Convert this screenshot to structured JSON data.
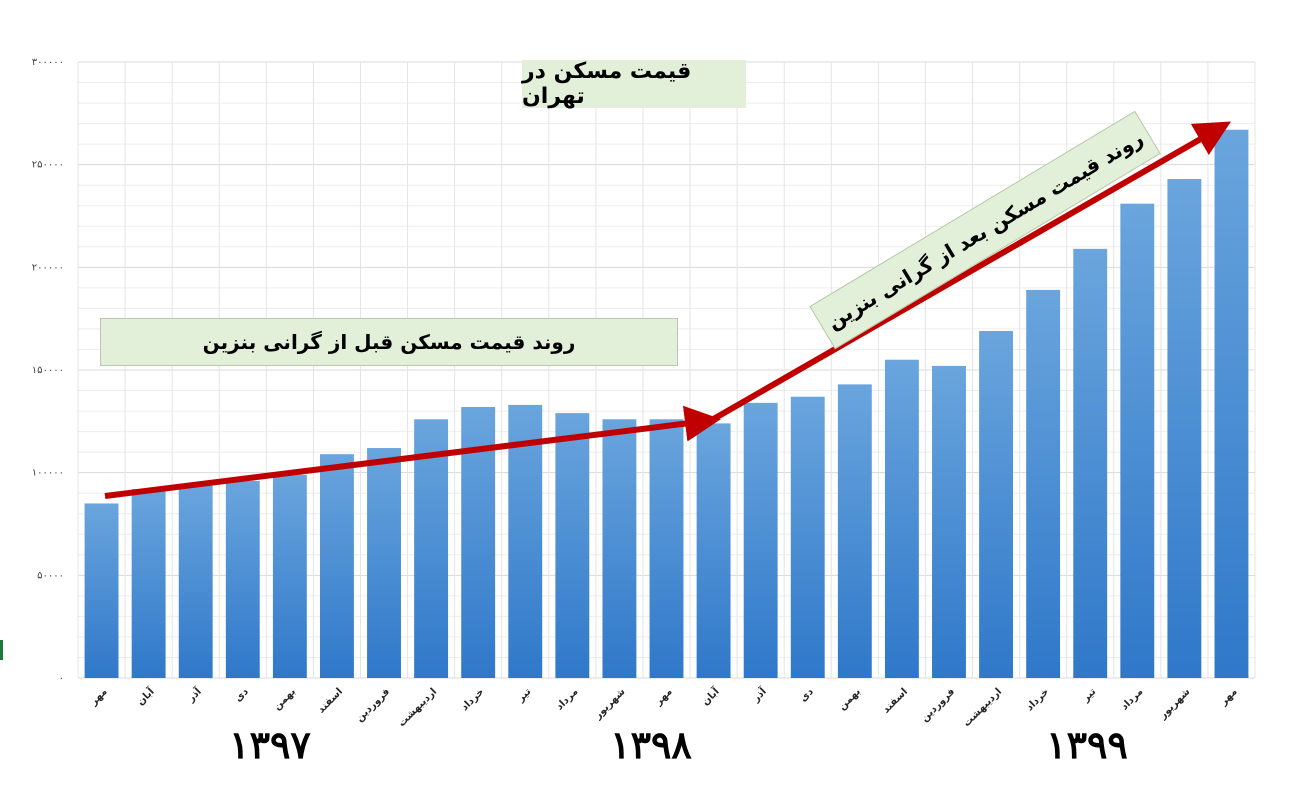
{
  "chart_data": {
    "type": "bar",
    "title": "قیمت مسکن در تهران",
    "categories": [
      "مهر",
      "آبان",
      "آذر",
      "دی",
      "بهمن",
      "اسفند",
      "فروردین",
      "اردیبهشت",
      "خرداد",
      "تیر",
      "مرداد",
      "شهریور",
      "مهر",
      "آبان",
      "آذر",
      "دی",
      "بهمن",
      "اسفند",
      "فروردین",
      "اردیبهشت",
      "خرداد",
      "تیر",
      "مرداد",
      "شهریور",
      "مهر"
    ],
    "values": [
      85000,
      92000,
      94000,
      96000,
      99000,
      109000,
      112000,
      126000,
      132000,
      133000,
      129000,
      126000,
      126000,
      124000,
      134000,
      137000,
      143000,
      155000,
      152000,
      169000,
      189000,
      209000,
      231000,
      243000,
      267000
    ],
    "ylim": [
      0,
      300000
    ],
    "yticks": [
      0,
      50000,
      100000,
      150000,
      200000,
      250000,
      300000
    ],
    "ytick_labels": [
      "۰",
      "۵۰۰۰۰",
      "۱۰۰۰۰۰",
      "۱۵۰۰۰۰",
      "۲۰۰۰۰۰",
      "۲۵۰۰۰۰",
      "۳۰۰۰۰۰"
    ],
    "grid": true,
    "bar_color": "#5b9bd5",
    "bar_color_bottom": "#2e75c8",
    "years": [
      "۱۳۹۷",
      "۱۳۹۸",
      "۱۳۹۹"
    ],
    "annotations": {
      "before_fuel_price_rise": "روند قیمت مسکن قبل از گرانی بنزین",
      "after_fuel_price_rise": "روند قیمت مسکن بعد از گرانی بنزین"
    },
    "trend_color": "#c00000",
    "note_background": "#e2efd9"
  }
}
